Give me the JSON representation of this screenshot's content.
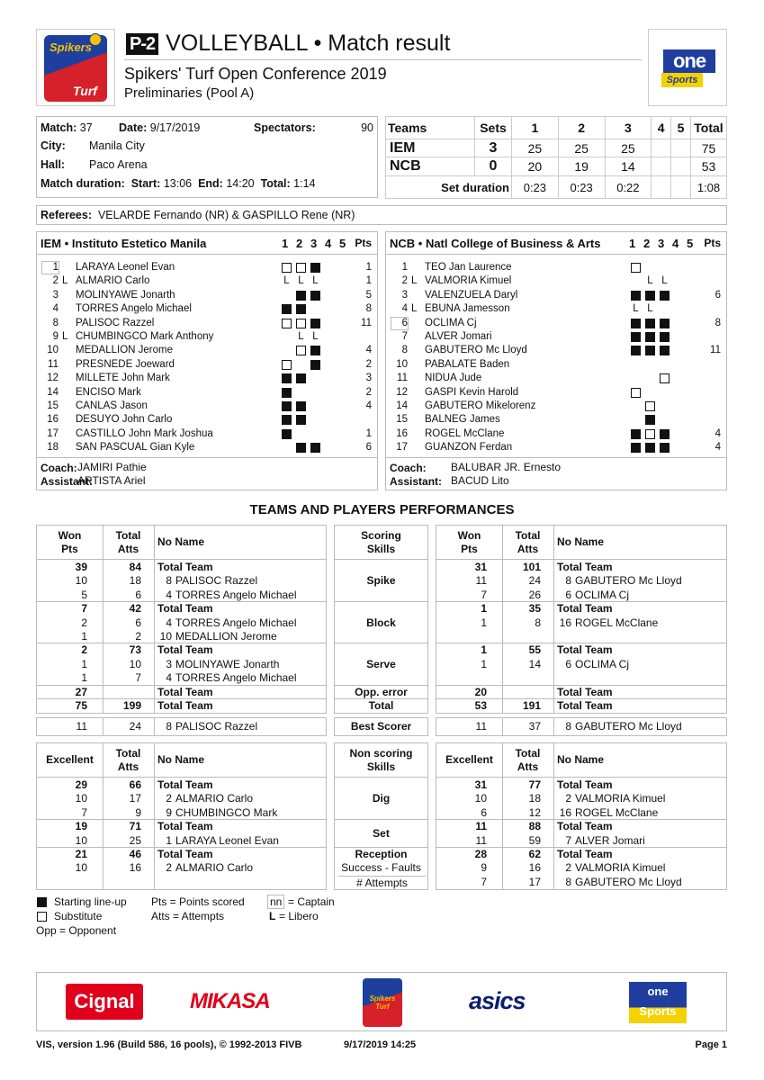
{
  "header": {
    "badge": "P-2",
    "title": "VOLLEYBALL • Match result",
    "competition": "Spikers' Turf Open Conference 2019",
    "phase": "Preliminaries (Pool A)",
    "left_logo": "Spikers Turf",
    "right_logo": {
      "top": "one",
      "bottom": "Sports"
    }
  },
  "match_info": {
    "match_label": "Match:",
    "match": "37",
    "date_label": "Date:",
    "date": "9/17/2019",
    "spectators_label": "Spectators:",
    "spectators": "90",
    "city_label": "City:",
    "city": "Manila City",
    "hall_label": "Hall:",
    "hall": "Paco Arena",
    "duration_label": "Match duration:",
    "start_label": "Start:",
    "start": "13:06",
    "end_label": "End:",
    "end": "14:20",
    "total_label": "Total:",
    "total": "1:14"
  },
  "score": {
    "headers": [
      "Teams",
      "Sets",
      "1",
      "2",
      "3",
      "4",
      "5",
      "Total"
    ],
    "rows": [
      [
        "IEM",
        "3",
        "25",
        "25",
        "25",
        "",
        "",
        "75"
      ],
      [
        "NCB",
        "0",
        "20",
        "19",
        "14",
        "",
        "",
        "53"
      ]
    ],
    "set_duration_label": "Set duration",
    "set_durations": [
      "0:23",
      "0:23",
      "0:22",
      "",
      "",
      "1:08"
    ]
  },
  "referees": {
    "label": "Referees:",
    "value": "VELARDE Fernando (NR) & GASPILLO Rene (NR)"
  },
  "teams": [
    {
      "name": "IEM • Instituto Estetico Manila",
      "set_headers": [
        "1",
        "2",
        "3",
        "4",
        "5"
      ],
      "pts_label": "Pts",
      "players": [
        {
          "no": "1",
          "libero": "",
          "captain": true,
          "name": "LARAYA Leonel Evan",
          "sets": [
            "s",
            "s",
            "S"
          ],
          "pts": "1"
        },
        {
          "no": "2",
          "libero": "L",
          "name": "ALMARIO Carlo",
          "sets": [
            "L",
            "L",
            "L"
          ],
          "pts": "1"
        },
        {
          "no": "3",
          "libero": "",
          "name": "MOLINYAWE Jonarth",
          "sets": [
            "",
            "S",
            "S"
          ],
          "pts": "5"
        },
        {
          "no": "4",
          "libero": "",
          "name": "TORRES Angelo Michael",
          "sets": [
            "S",
            "S",
            ""
          ],
          "pts": "8"
        },
        {
          "no": "8",
          "libero": "",
          "name": "PALISOC Razzel",
          "sets": [
            "s",
            "s",
            "S"
          ],
          "pts": "11"
        },
        {
          "no": "9",
          "libero": "L",
          "name": "CHUMBINGCO Mark Anthony",
          "sets": [
            "",
            "L",
            "L"
          ],
          "pts": ""
        },
        {
          "no": "10",
          "libero": "",
          "name": "MEDALLION Jerome",
          "sets": [
            "",
            "s",
            "S"
          ],
          "pts": "4"
        },
        {
          "no": "11",
          "libero": "",
          "name": "PRESNEDE Joeward",
          "sets": [
            "s",
            "",
            "S"
          ],
          "pts": "2"
        },
        {
          "no": "12",
          "libero": "",
          "name": "MILLETE John Mark",
          "sets": [
            "S",
            "S",
            ""
          ],
          "pts": "3"
        },
        {
          "no": "14",
          "libero": "",
          "name": "ENCISO Mark",
          "sets": [
            "S",
            "",
            ""
          ],
          "pts": "2"
        },
        {
          "no": "15",
          "libero": "",
          "name": "CANLAS Jason",
          "sets": [
            "S",
            "S",
            ""
          ],
          "pts": "4"
        },
        {
          "no": "16",
          "libero": "",
          "name": "DESUYO John Carlo",
          "sets": [
            "S",
            "S",
            ""
          ],
          "pts": ""
        },
        {
          "no": "17",
          "libero": "",
          "name": "CASTILLO John Mark Joshua",
          "sets": [
            "S",
            "",
            ""
          ],
          "pts": "1"
        },
        {
          "no": "18",
          "libero": "",
          "name": "SAN PASCUAL Gian Kyle",
          "sets": [
            "",
            "S",
            "S"
          ],
          "pts": "6"
        }
      ],
      "coach_label": "Coach:",
      "coach": "JAMIRI Pathie",
      "assistant_label": "Assistant:",
      "assistant": "ARTISTA Ariel"
    },
    {
      "name": "NCB • Natl College of Business & Arts",
      "set_headers": [
        "1",
        "2",
        "3",
        "4",
        "5"
      ],
      "pts_label": "Pts",
      "players": [
        {
          "no": "1",
          "libero": "",
          "name": "TEO Jan Laurence",
          "sets": [
            "s",
            "",
            ""
          ],
          "pts": ""
        },
        {
          "no": "2",
          "libero": "L",
          "name": "VALMORIA Kimuel",
          "sets": [
            "",
            "L",
            "L"
          ],
          "pts": ""
        },
        {
          "no": "3",
          "libero": "",
          "name": "VALENZUELA Daryl",
          "sets": [
            "S",
            "S",
            "S"
          ],
          "pts": "6"
        },
        {
          "no": "4",
          "libero": "L",
          "name": "EBUNA Jamesson",
          "sets": [
            "L",
            "L",
            ""
          ],
          "pts": ""
        },
        {
          "no": "6",
          "libero": "",
          "captain": true,
          "name": "OCLIMA Cj",
          "sets": [
            "S",
            "S",
            "S"
          ],
          "pts": "8"
        },
        {
          "no": "7",
          "libero": "",
          "name": "ALVER Jomari",
          "sets": [
            "S",
            "S",
            "S"
          ],
          "pts": ""
        },
        {
          "no": "8",
          "libero": "",
          "name": "GABUTERO Mc Lloyd",
          "sets": [
            "S",
            "S",
            "S"
          ],
          "pts": "11"
        },
        {
          "no": "10",
          "libero": "",
          "name": "PABALATE Baden",
          "sets": [
            "",
            "",
            ""
          ],
          "pts": ""
        },
        {
          "no": "11",
          "libero": "",
          "name": "NIDUA Jude",
          "sets": [
            "",
            "",
            "s"
          ],
          "pts": ""
        },
        {
          "no": "12",
          "libero": "",
          "name": "GASPI Kevin Harold",
          "sets": [
            "s",
            "",
            ""
          ],
          "pts": ""
        },
        {
          "no": "14",
          "libero": "",
          "name": "GABUTERO Mikelorenz",
          "sets": [
            "",
            "s",
            ""
          ],
          "pts": ""
        },
        {
          "no": "15",
          "libero": "",
          "name": "BALNEG James",
          "sets": [
            "",
            "S",
            ""
          ],
          "pts": ""
        },
        {
          "no": "16",
          "libero": "",
          "name": "ROGEL McClane",
          "sets": [
            "S",
            "s",
            "S"
          ],
          "pts": "4"
        },
        {
          "no": "17",
          "libero": "",
          "name": "GUANZON Ferdan",
          "sets": [
            "S",
            "S",
            "S"
          ],
          "pts": "4"
        }
      ],
      "coach_label": "Coach:",
      "coach": "BALUBAR JR. Ernesto",
      "assistant_label": "Assistant:",
      "assistant": "BACUD Lito"
    }
  ],
  "performances": {
    "title": "TEAMS AND PLAYERS PERFORMANCES",
    "scoring": {
      "left_headers": [
        "Won\nPts",
        "Total\nAtts",
        "No Name"
      ],
      "mid_header": "Scoring\nSkills",
      "right_headers": [
        "Won\nPts",
        "Total\nAtts",
        "No Name"
      ],
      "groups": [
        {
          "skill": [
            "Spike"
          ],
          "rows": 3,
          "left": [
            [
              "39",
              "84",
              "",
              "Total Team",
              true
            ],
            [
              "10",
              "18",
              "8",
              "PALISOC Razzel"
            ],
            [
              "5",
              "6",
              "4",
              "TORRES Angelo Michael"
            ]
          ],
          "right": [
            [
              "31",
              "101",
              "",
              "Total Team",
              true
            ],
            [
              "11",
              "24",
              "8",
              "GABUTERO Mc Lloyd"
            ],
            [
              "7",
              "26",
              "6",
              "OCLIMA Cj"
            ]
          ]
        },
        {
          "skill": [
            "Block"
          ],
          "rows": 3,
          "left": [
            [
              "7",
              "42",
              "",
              "Total Team",
              true
            ],
            [
              "2",
              "6",
              "4",
              "TORRES Angelo Michael"
            ],
            [
              "1",
              "2",
              "10",
              "MEDALLION Jerome"
            ]
          ],
          "right": [
            [
              "1",
              "35",
              "",
              "Total Team",
              true
            ],
            [
              "1",
              "8",
              "16",
              "ROGEL McClane"
            ]
          ]
        },
        {
          "skill": [
            "Serve"
          ],
          "rows": 3,
          "left": [
            [
              "2",
              "73",
              "",
              "Total Team",
              true
            ],
            [
              "1",
              "10",
              "3",
              "MOLINYAWE Jonarth"
            ],
            [
              "1",
              "7",
              "4",
              "TORRES Angelo Michael"
            ]
          ],
          "right": [
            [
              "1",
              "55",
              "",
              "Total Team",
              true
            ],
            [
              "1",
              "14",
              "6",
              "OCLIMA Cj"
            ]
          ]
        },
        {
          "skill": [
            "Opp. error"
          ],
          "rows": 1,
          "left": [
            [
              "27",
              "",
              "",
              "Total Team",
              true
            ]
          ],
          "right": [
            [
              "20",
              "",
              "",
              "Total Team",
              true
            ]
          ]
        },
        {
          "skill": [
            "Total"
          ],
          "rows": 1,
          "left": [
            [
              "75",
              "199",
              "",
              "Total Team",
              true
            ]
          ],
          "right": [
            [
              "53",
              "191",
              "",
              "Total Team",
              true
            ]
          ]
        }
      ]
    },
    "best_scorer": {
      "label": "Best Scorer",
      "left": [
        "11",
        "24",
        "8",
        "PALISOC Razzel"
      ],
      "right": [
        "11",
        "37",
        "8",
        "GABUTERO Mc Lloyd"
      ]
    },
    "non_scoring": {
      "left_headers": [
        "Excellent",
        "Total\nAtts",
        "No Name"
      ],
      "mid_header": "Non scoring\nSkills",
      "right_headers": [
        "Excellent",
        "Total\nAtts",
        "No Name"
      ],
      "groups": [
        {
          "skill": [
            "Dig"
          ],
          "rows": 3,
          "left": [
            [
              "29",
              "66",
              "",
              "Total Team",
              true
            ],
            [
              "10",
              "17",
              "2",
              "ALMARIO Carlo"
            ],
            [
              "7",
              "9",
              "9",
              "CHUMBINGCO Mark"
            ]
          ],
          "right": [
            [
              "31",
              "77",
              "",
              "Total Team",
              true
            ],
            [
              "10",
              "18",
              "2",
              "VALMORIA Kimuel"
            ],
            [
              "6",
              "12",
              "16",
              "ROGEL McClane"
            ]
          ]
        },
        {
          "skill": [
            "Set"
          ],
          "rows": 2,
          "left": [
            [
              "19",
              "71",
              "",
              "Total Team",
              true
            ],
            [
              "10",
              "25",
              "1",
              "LARAYA Leonel Evan"
            ]
          ],
          "right": [
            [
              "11",
              "88",
              "",
              "Total Team",
              true
            ],
            [
              "11",
              "59",
              "7",
              "ALVER Jomari"
            ]
          ]
        },
        {
          "skill": [
            "Reception",
            "Success - Faults",
            "# Attempts"
          ],
          "rows": 3,
          "left": [
            [
              "21",
              "46",
              "",
              "Total Team",
              true
            ],
            [
              "10",
              "16",
              "2",
              "ALMARIO Carlo"
            ]
          ],
          "right": [
            [
              "28",
              "62",
              "",
              "Total Team",
              true
            ],
            [
              "9",
              "16",
              "2",
              "VALMORIA Kimuel"
            ],
            [
              "7",
              "17",
              "8",
              "GABUTERO Mc Lloyd"
            ]
          ]
        }
      ]
    }
  },
  "legend": {
    "starting": "Starting line-up",
    "substitute": "Substitute",
    "opp": "Opp = Opponent",
    "pts": "Pts = Points scored",
    "atts": "Atts = Attempts",
    "captain_box": "nn",
    "captain": "= Captain",
    "libero_l": "L",
    "libero": "= Libero"
  },
  "sponsors": [
    "Cignal",
    "MIKASA",
    "Spikers Turf",
    "asics",
    "one Sports"
  ],
  "footer": {
    "version": "VIS, version 1.96 (Build 586, 16 pools), © 1992-2013 FIVB",
    "printed": "9/17/2019  14:25",
    "page": "Page 1"
  },
  "colors": {
    "border": "#bbbbbb",
    "cignal_red": "#e0001b",
    "mikasa_red": "#e2001a",
    "asics_navy": "#0a1f6b",
    "one_blue": "#1f3ea0",
    "one_yellow": "#f6d100"
  }
}
